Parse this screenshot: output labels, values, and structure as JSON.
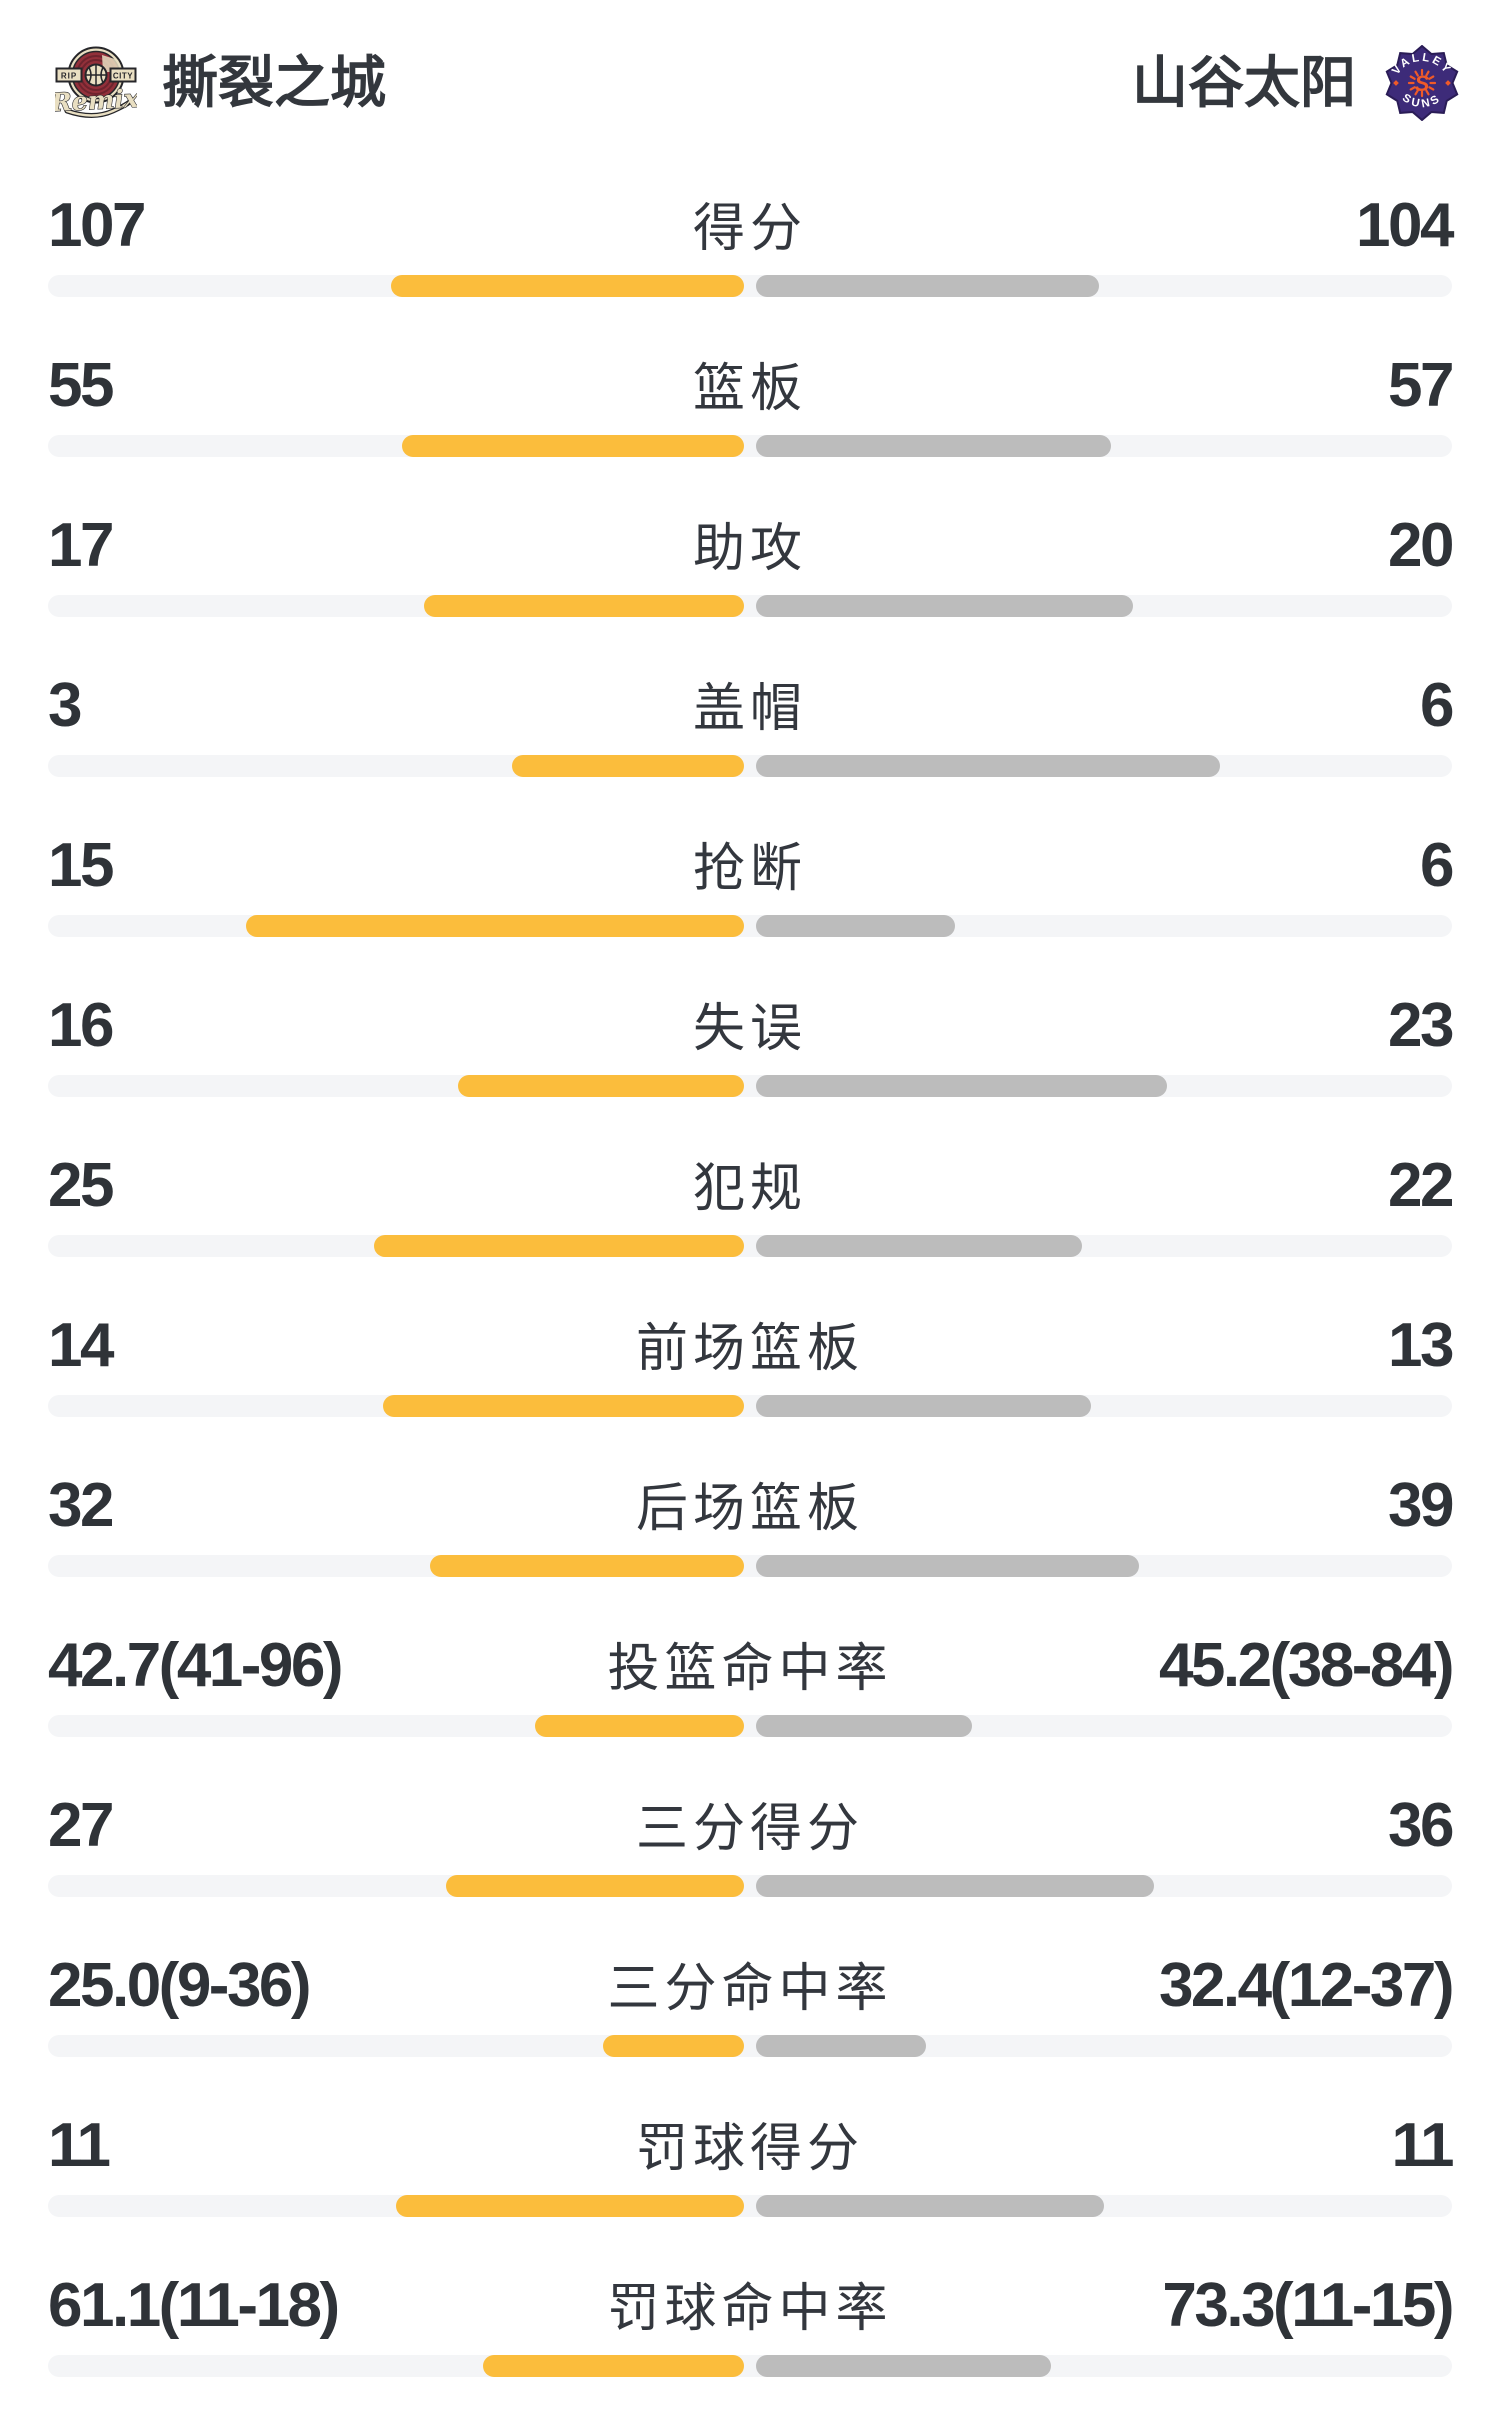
{
  "colors": {
    "page_bg": "#FFFFFF",
    "home_bar": "#FBBD3C",
    "away_bar": "#BCBCBC",
    "bar_track": "#F4F5F7",
    "value_text": "#2F3338",
    "label_text": "#33373E",
    "name_text": "#33373D"
  },
  "header": {
    "home": {
      "name": "撕裂之城",
      "logo": {
        "banner_left": "RIP",
        "banner_right": "CITY",
        "script": "Remix"
      }
    },
    "away": {
      "name": "山谷太阳",
      "logo": {
        "arc_top": "VALLEY",
        "arc_bottom": "SUNS"
      }
    }
  },
  "stats": [
    {
      "label": "得分",
      "home": "107",
      "away": "104",
      "home_bar_pct": 25.15,
      "away_bar_pct": 24.45
    },
    {
      "label": "篮板",
      "home": "55",
      "away": "57",
      "home_bar_pct": 24.36,
      "away_bar_pct": 25.25
    },
    {
      "label": "助攻",
      "home": "17",
      "away": "20",
      "home_bar_pct": 22.79,
      "away_bar_pct": 26.82
    },
    {
      "label": "盖帽",
      "home": "3",
      "away": "6",
      "home_bar_pct": 16.53,
      "away_bar_pct": 33.07
    },
    {
      "label": "抢断",
      "home": "15",
      "away": "6",
      "home_bar_pct": 35.44,
      "away_bar_pct": 14.17
    },
    {
      "label": "失误",
      "home": "16",
      "away": "23",
      "home_bar_pct": 20.35,
      "away_bar_pct": 29.26
    },
    {
      "label": "犯规",
      "home": "25",
      "away": "22",
      "home_bar_pct": 26.38,
      "away_bar_pct": 23.22
    },
    {
      "label": "前场篮板",
      "home": "14",
      "away": "13",
      "home_bar_pct": 25.72,
      "away_bar_pct": 23.89
    },
    {
      "label": "后场篮板",
      "home": "32",
      "away": "39",
      "home_bar_pct": 22.36,
      "away_bar_pct": 27.25
    },
    {
      "label": "投篮命中率",
      "home": "42.7(41-96)",
      "away": "45.2(38-84)",
      "home_bar_pct": 14.88,
      "away_bar_pct": 15.37
    },
    {
      "label": "三分得分",
      "home": "27",
      "away": "36",
      "home_bar_pct": 21.26,
      "away_bar_pct": 28.35
    },
    {
      "label": "三分命中率",
      "home": "25.0(9-36)",
      "away": "32.4(12-37)",
      "home_bar_pct": 10.04,
      "away_bar_pct": 12.1
    },
    {
      "label": "罚球得分",
      "home": "11",
      "away": "11",
      "home_bar_pct": 24.8,
      "away_bar_pct": 24.8
    },
    {
      "label": "罚球命中率",
      "home": "61.1(11-18)",
      "away": "73.3(11-15)",
      "home_bar_pct": 18.58,
      "away_bar_pct": 21.0
    }
  ],
  "chart_data": {
    "type": "bar",
    "categories": [
      "得分",
      "篮板",
      "助攻",
      "盖帽",
      "抢断",
      "失误",
      "犯规",
      "前场篮板",
      "后场篮板",
      "投篮命中率",
      "三分得分",
      "三分命中率",
      "罚球得分",
      "罚球命中率"
    ],
    "series": [
      {
        "name": "撕裂之城",
        "values": [
          107,
          55,
          17,
          3,
          15,
          16,
          25,
          14,
          32,
          42.7,
          27,
          25.0,
          11,
          61.1
        ]
      },
      {
        "name": "山谷太阳",
        "values": [
          104,
          57,
          20,
          6,
          6,
          23,
          22,
          13,
          39,
          45.2,
          36,
          32.4,
          11,
          73.3
        ]
      }
    ],
    "title": "",
    "legend_position": "header",
    "grid": false
  }
}
